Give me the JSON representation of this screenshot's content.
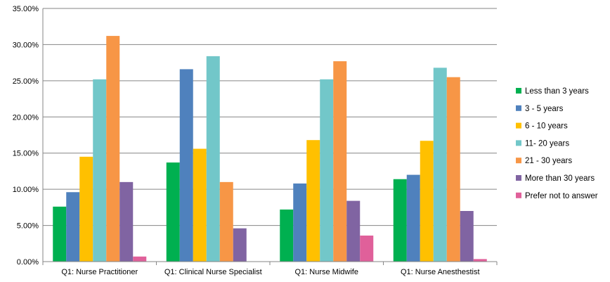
{
  "chart_data": {
    "type": "bar",
    "categories": [
      "Q1: Nurse Practitioner",
      "Q1: Clinical Nurse Specialist",
      "Q1: Nurse Midwife",
      "Q1: Nurse Anesthestist"
    ],
    "ylim": [
      0,
      35
    ],
    "yticks": [
      "0.00%",
      "5.00%",
      "10.00%",
      "15.00%",
      "20.00%",
      "25.00%",
      "30.00%",
      "35.00%"
    ],
    "grid": true,
    "legend_position": "right",
    "series": [
      {
        "name": "Less than 3 years",
        "color": "#00B050",
        "values": [
          7.6,
          13.7,
          7.2,
          11.4
        ]
      },
      {
        "name": "3 - 5 years",
        "color": "#4F81BD",
        "values": [
          9.6,
          26.6,
          10.8,
          12.0
        ]
      },
      {
        "name": "6 - 10 years",
        "color": "#FFC000",
        "values": [
          14.5,
          15.6,
          16.8,
          16.7
        ]
      },
      {
        "name": "11- 20 years",
        "color": "#72C7C9",
        "values": [
          25.2,
          28.4,
          25.2,
          26.8
        ]
      },
      {
        "name": "21 - 30 years",
        "color": "#F79646",
        "values": [
          31.2,
          11.0,
          27.7,
          25.5
        ]
      },
      {
        "name": "More than 30 years",
        "color": "#8064A2",
        "values": [
          11.0,
          4.6,
          8.4,
          7.0
        ]
      },
      {
        "name": "Prefer not to answer",
        "color": "#E0609A",
        "values": [
          0.7,
          0.0,
          3.6,
          0.35
        ]
      }
    ]
  }
}
